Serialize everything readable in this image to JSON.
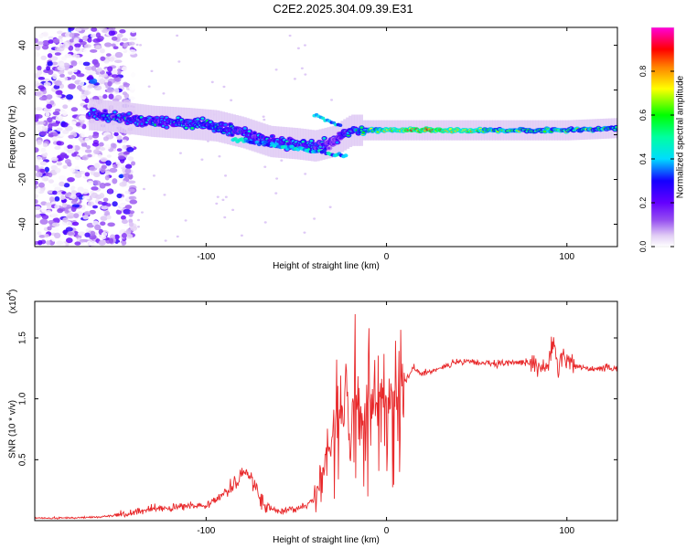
{
  "title": "C2E2.2025.304.09.39.E31",
  "chart_data": [
    {
      "type": "heatmap",
      "xlabel": "Height of straight line (km)",
      "ylabel": "Frequency (Hz)",
      "xlim": [
        -195,
        128
      ],
      "ylim": [
        -50,
        48
      ],
      "xticks": [
        -100,
        0,
        100
      ],
      "xtick_labels": [
        "-100",
        "0",
        "100"
      ],
      "yticks": [
        -40,
        -20,
        0,
        20,
        40
      ],
      "ytick_labels": [
        "-40",
        "-20",
        "0",
        "20",
        "40"
      ],
      "colorbar": {
        "label": "Normalized spectral amplitude",
        "range": [
          0,
          1
        ],
        "ticks": [
          0.0,
          0.2,
          0.4,
          0.6,
          0.8
        ],
        "tick_labels": [
          "0.0",
          "0.2",
          "0.4",
          "0.6",
          "0.8"
        ],
        "colors": [
          "#ffffff",
          "#d8b8f0",
          "#8800ff",
          "#0000ff",
          "#00ffff",
          "#00ff00",
          "#ffff00",
          "#ff8800",
          "#ff0000",
          "#ff00ff"
        ]
      },
      "ridge": {
        "x": [
          -165,
          -150,
          -130,
          -110,
          -95,
          -80,
          -65,
          -50,
          -40,
          -30,
          -20,
          -10,
          0,
          20,
          50,
          80,
          100,
          128
        ],
        "freq_hz": [
          9,
          8,
          6,
          5,
          4,
          1,
          -3,
          -4,
          -5,
          -3,
          2,
          2,
          2,
          2,
          2,
          2,
          2,
          3
        ],
        "amplitude": [
          0.35,
          0.4,
          0.35,
          0.4,
          0.45,
          0.35,
          0.35,
          0.4,
          0.35,
          0.3,
          0.4,
          0.55,
          0.7,
          0.85,
          0.7,
          0.55,
          0.6,
          0.5
        ]
      }
    },
    {
      "type": "line",
      "xlabel": "Height of straight line (km)",
      "ylabel": "SNR (10 * v/v)",
      "y_multiplier_label": "(x10",
      "y_multiplier_exp": "4",
      "y_multiplier_close": ")",
      "xlim": [
        -195,
        128
      ],
      "ylim": [
        0,
        1.8
      ],
      "xticks": [
        -100,
        0,
        100
      ],
      "xtick_labels": [
        "-100",
        "0",
        "100"
      ],
      "yticks": [
        0.5,
        1.0,
        1.5
      ],
      "ytick_labels": [
        "0.5",
        "1.0",
        "1.5"
      ],
      "color": "#e8282a",
      "series": {
        "x": [
          -195,
          -180,
          -160,
          -140,
          -130,
          -120,
          -110,
          -100,
          -90,
          -85,
          -80,
          -75,
          -72,
          -70,
          -65,
          -60,
          -55,
          -50,
          -45,
          -40,
          -35,
          -32,
          -28,
          -25,
          -22,
          -20,
          -18,
          -15,
          -12,
          -10,
          -8,
          -5,
          -2,
          0,
          5,
          10,
          15,
          20,
          30,
          40,
          50,
          60,
          70,
          80,
          85,
          90,
          93,
          95,
          98,
          100,
          105,
          110,
          120,
          128
        ],
        "y": [
          0.02,
          0.02,
          0.03,
          0.06,
          0.1,
          0.1,
          0.12,
          0.13,
          0.22,
          0.3,
          0.4,
          0.35,
          0.28,
          0.15,
          0.1,
          0.08,
          0.08,
          0.1,
          0.12,
          0.18,
          0.4,
          0.6,
          0.9,
          0.8,
          1.1,
          0.5,
          1.2,
          0.7,
          0.9,
          1.0,
          0.95,
          0.9,
          1.05,
          1.0,
          1.05,
          1.15,
          1.25,
          1.2,
          1.26,
          1.3,
          1.3,
          1.28,
          1.3,
          1.3,
          1.25,
          1.3,
          1.5,
          1.2,
          1.4,
          1.3,
          1.28,
          1.25,
          1.25,
          1.25
        ]
      }
    }
  ]
}
